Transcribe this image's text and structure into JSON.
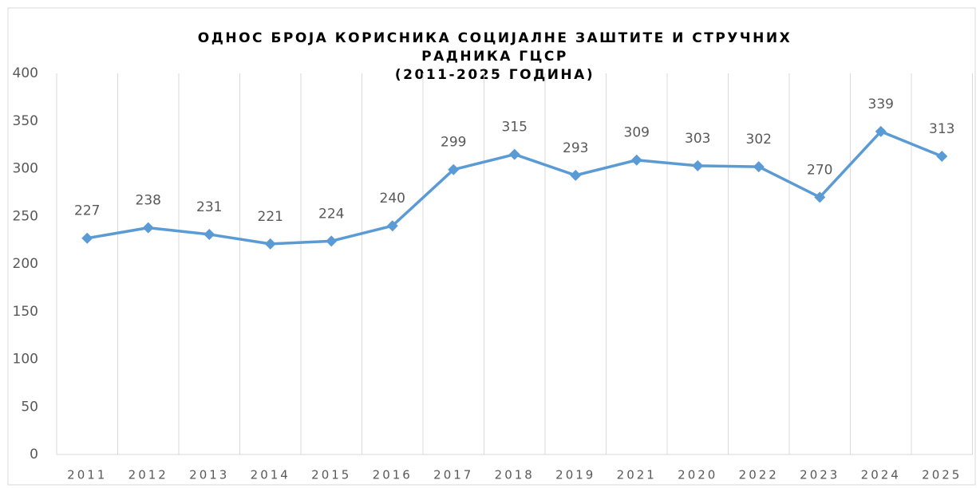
{
  "chart_data": {
    "type": "line",
    "title": [
      "ОДНОС БРОЈА КОРИСНИКА СОЦИЈАЛНЕ ЗАШТИТЕ И СТРУЧНИХ",
      "РАДНИКА ГЦСР",
      "(2011-2025 ГОДИНА)"
    ],
    "categories": [
      "2011",
      "2012",
      "2013",
      "2014",
      "2015",
      "2016",
      "2017",
      "2018",
      "2019",
      "2021",
      "2020",
      "2022",
      "2023",
      "2024",
      "2025"
    ],
    "series": [
      {
        "name": "Series1",
        "color": "#5b9bd5",
        "values": [
          227,
          238,
          231,
          221,
          224,
          240,
          299,
          315,
          293,
          309,
          303,
          302,
          270,
          339,
          313
        ]
      }
    ],
    "ylim": [
      0,
      400
    ],
    "yticks": [
      0,
      50,
      100,
      150,
      200,
      250,
      300,
      350,
      400
    ],
    "grid": "vertical",
    "data_labels": true
  }
}
